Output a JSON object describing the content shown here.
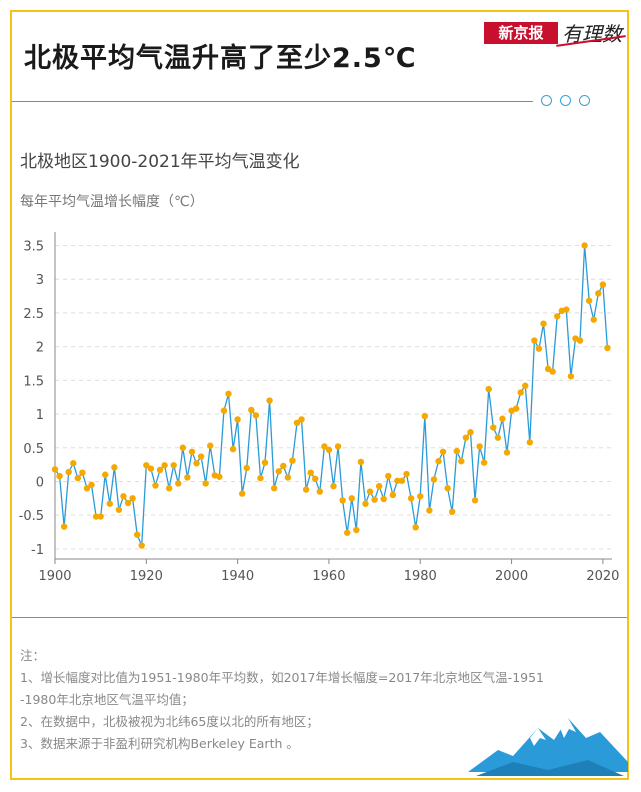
{
  "header": {
    "title": "北极平均气温升高了至少2.5℃"
  },
  "logo": {
    "brand_box": "新京报",
    "brand_script": "有理数"
  },
  "chart_data": {
    "type": "line",
    "title": "北极地区1900-2021年平均气温变化",
    "ylabel": "每年平均气温增长幅度（℃）",
    "xlabel": "",
    "xlim": [
      1900,
      2022
    ],
    "ylim": [
      -1.15,
      3.7
    ],
    "xticks": [
      "1900",
      "1920",
      "1940",
      "1960",
      "1980",
      "2000",
      "2020"
    ],
    "yticks": [
      "3.5",
      "3",
      "2.5",
      "2",
      "1.5",
      "1",
      "0.5",
      "0",
      "-0.5",
      "-1"
    ],
    "grid": "horizontal dashed",
    "line_color": "#2a9bd8",
    "marker_color": "#f5a800",
    "x": [
      1900,
      1901,
      1902,
      1903,
      1904,
      1905,
      1906,
      1907,
      1908,
      1909,
      1910,
      1911,
      1912,
      1913,
      1914,
      1915,
      1916,
      1917,
      1918,
      1919,
      1920,
      1921,
      1922,
      1923,
      1924,
      1925,
      1926,
      1927,
      1928,
      1929,
      1930,
      1931,
      1932,
      1933,
      1934,
      1935,
      1936,
      1937,
      1938,
      1939,
      1940,
      1941,
      1942,
      1943,
      1944,
      1945,
      1946,
      1947,
      1948,
      1949,
      1950,
      1951,
      1952,
      1953,
      1954,
      1955,
      1956,
      1957,
      1958,
      1959,
      1960,
      1961,
      1962,
      1963,
      1964,
      1965,
      1966,
      1967,
      1968,
      1969,
      1970,
      1971,
      1972,
      1973,
      1974,
      1975,
      1976,
      1977,
      1978,
      1979,
      1980,
      1981,
      1982,
      1983,
      1984,
      1985,
      1986,
      1987,
      1988,
      1989,
      1990,
      1991,
      1992,
      1993,
      1994,
      1995,
      1996,
      1997,
      1998,
      1999,
      2000,
      2001,
      2002,
      2003,
      2004,
      2005,
      2006,
      2007,
      2008,
      2009,
      2010,
      2011,
      2012,
      2013,
      2014,
      2015,
      2016,
      2017,
      2018,
      2019,
      2020,
      2021
    ],
    "values": [
      0.18,
      0.08,
      -0.67,
      0.14,
      0.27,
      0.05,
      0.13,
      -0.1,
      -0.05,
      -0.52,
      -0.52,
      0.1,
      -0.33,
      0.21,
      -0.42,
      -0.22,
      -0.32,
      -0.25,
      -0.79,
      -0.95,
      0.24,
      0.19,
      -0.06,
      0.17,
      0.24,
      -0.1,
      0.24,
      -0.03,
      0.5,
      0.06,
      0.44,
      0.27,
      0.37,
      -0.03,
      0.53,
      0.09,
      0.07,
      1.05,
      1.3,
      0.48,
      0.92,
      -0.18,
      0.2,
      1.06,
      0.98,
      0.05,
      0.28,
      1.2,
      -0.1,
      0.15,
      0.23,
      0.06,
      0.31,
      0.87,
      0.92,
      -0.12,
      0.13,
      0.04,
      -0.15,
      0.52,
      0.47,
      -0.07,
      0.52,
      -0.28,
      -0.76,
      -0.25,
      -0.72,
      0.29,
      -0.33,
      -0.15,
      -0.27,
      -0.07,
      -0.26,
      0.08,
      -0.2,
      0.01,
      0.01,
      0.11,
      -0.25,
      -0.68,
      -0.22,
      0.97,
      -0.43,
      0.03,
      0.3,
      0.44,
      -0.1,
      -0.45,
      0.45,
      0.3,
      0.65,
      0.73,
      -0.28,
      0.52,
      0.28,
      1.37,
      0.8,
      0.65,
      0.93,
      0.43,
      1.05,
      1.08,
      1.32,
      1.42,
      0.58,
      2.09,
      1.97,
      2.34,
      1.67,
      1.63,
      2.45,
      2.53,
      2.55,
      1.56,
      2.12,
      2.09,
      3.5,
      2.68,
      2.4,
      2.79,
      2.92,
      1.98
    ]
  },
  "notes": {
    "heading": "注：",
    "line1": "1、增长幅度对比值为1951-1980年平均数，如2017年增长幅度=2017年北京地区气温-1951",
    "line1b": "-1980年北京地区气温平均值；",
    "line2": "2、在数据中，北极被视为北纬65度以北的所有地区；",
    "line3": "3、数据来源于非盈利研究机构Berkeley Earth 。"
  },
  "icons": {
    "decor": [
      "circle-icon",
      "mountain-icon"
    ]
  }
}
